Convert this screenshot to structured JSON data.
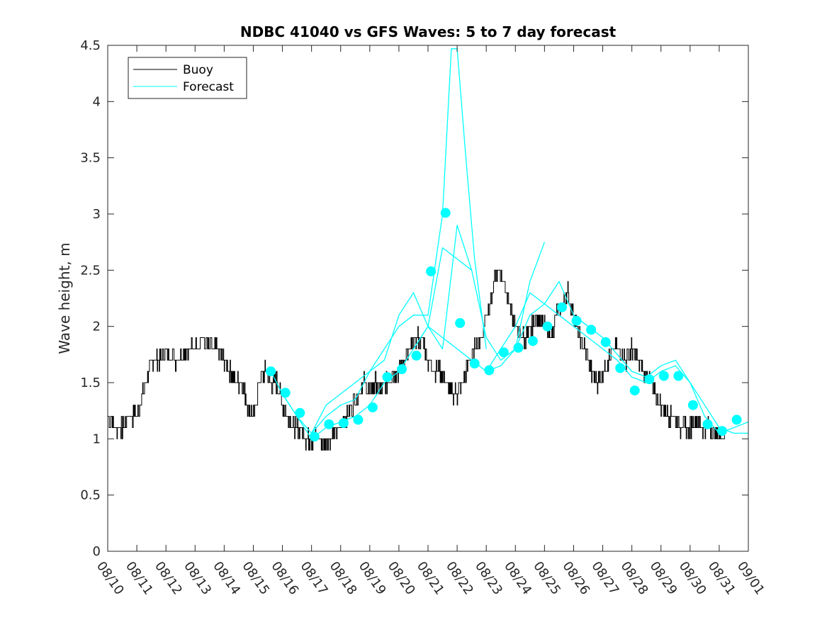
{
  "chart_data": {
    "type": "line",
    "title": "NDBC 41040 vs GFS Waves: 5 to 7 day forecast",
    "xlabel": "",
    "ylabel": "Wave height, m",
    "xlim": [
      0,
      22
    ],
    "ylim": [
      0,
      4.5
    ],
    "x_tick_labels": [
      "08/10",
      "08/11",
      "08/12",
      "08/13",
      "08/14",
      "08/15",
      "08/16",
      "08/17",
      "08/18",
      "08/19",
      "08/20",
      "08/21",
      "08/22",
      "08/23",
      "08/24",
      "08/25",
      "08/26",
      "08/27",
      "08/28",
      "08/29",
      "08/30",
      "08/31",
      "09/01"
    ],
    "y_ticks": [
      "0",
      "0.5",
      "1",
      "1.5",
      "2",
      "2.5",
      "3",
      "3.5",
      "4",
      "4.5"
    ],
    "grid": false,
    "legend_position": "top-left",
    "series": [
      {
        "name": "Buoy",
        "color": "#000000",
        "x": [
          0,
          0.3,
          0.5,
          0.7,
          1.0,
          1.2,
          1.4,
          1.6,
          1.8,
          2.0,
          2.3,
          2.6,
          2.9,
          3.2,
          3.5,
          3.8,
          4.0,
          4.2,
          4.4,
          4.6,
          4.8,
          5.0,
          5.2,
          5.4,
          5.6,
          5.8,
          6.0,
          6.2,
          6.4,
          6.6,
          6.8,
          7.0,
          7.2,
          7.4,
          7.6,
          7.8,
          8.0,
          8.2,
          8.4,
          8.6,
          8.8,
          9.0,
          9.2,
          9.4,
          9.6,
          9.8,
          10.0,
          10.2,
          10.4,
          10.6,
          10.8,
          11.0,
          11.2,
          11.4,
          11.6,
          11.8,
          12.0,
          12.2,
          12.4,
          12.6,
          12.8,
          13.0,
          13.2,
          13.4,
          13.6,
          13.8,
          14.0,
          14.2,
          14.4,
          14.6,
          14.8,
          15.0,
          15.2,
          15.4,
          15.6,
          15.8,
          16.0,
          16.2,
          16.4,
          16.6,
          16.8,
          17.0,
          17.2,
          17.4,
          17.6,
          17.8,
          18.0,
          18.2,
          18.4,
          18.6,
          18.8,
          19.0,
          19.2,
          19.4,
          19.6,
          19.8,
          20.0,
          20.2,
          20.4,
          20.6,
          20.8,
          21.0,
          21.2
        ],
        "values": [
          1.2,
          1.1,
          1.1,
          1.2,
          1.2,
          1.4,
          1.6,
          1.7,
          1.7,
          1.8,
          1.7,
          1.8,
          1.8,
          1.9,
          1.8,
          1.8,
          1.7,
          1.6,
          1.5,
          1.5,
          1.3,
          1.2,
          1.5,
          1.6,
          1.5,
          1.5,
          1.3,
          1.2,
          1.1,
          1.1,
          1.0,
          1.0,
          1.0,
          0.95,
          1.0,
          1.05,
          1.1,
          1.2,
          1.3,
          1.4,
          1.5,
          1.4,
          1.5,
          1.4,
          1.5,
          1.6,
          1.6,
          1.7,
          1.8,
          1.9,
          1.9,
          1.7,
          1.6,
          1.6,
          1.5,
          1.4,
          1.4,
          1.5,
          1.7,
          1.8,
          1.9,
          2.1,
          2.3,
          2.5,
          2.4,
          2.2,
          2.0,
          1.9,
          1.9,
          2.0,
          2.1,
          2.0,
          1.9,
          2.1,
          2.2,
          2.3,
          2.1,
          1.9,
          1.8,
          1.6,
          1.5,
          1.6,
          1.7,
          1.8,
          1.8,
          1.7,
          1.8,
          1.7,
          1.6,
          1.5,
          1.4,
          1.3,
          1.2,
          1.2,
          1.1,
          1.1,
          1.1,
          1.2,
          1.1,
          1.1,
          1.05,
          1.05,
          1.0
        ]
      },
      {
        "name": "Forecast",
        "color": "#00ffff",
        "runs": [
          {
            "x": [
              5.6,
              6.0,
              6.5,
              7.0,
              7.5,
              8.0,
              8.5,
              9.0,
              9.5,
              10.0,
              10.5,
              11.0,
              11.5,
              12.0,
              12.5
            ],
            "values": [
              1.6,
              1.4,
              1.2,
              1.0,
              1.1,
              1.15,
              1.2,
              1.3,
              1.5,
              1.6,
              1.8,
              2.0,
              2.7,
              2.6,
              2.5
            ]
          },
          {
            "x": [
              6.0,
              6.5,
              7.0,
              7.5,
              8.0,
              8.5,
              9.0,
              9.5,
              10.0,
              10.5,
              11.0,
              11.5,
              11.8,
              12.0,
              12.3,
              12.6,
              13.0
            ],
            "values": [
              1.4,
              1.2,
              1.05,
              1.2,
              1.3,
              1.35,
              1.6,
              1.8,
              2.0,
              2.1,
              2.1,
              3.0,
              4.47,
              4.47,
              3.5,
              2.6,
              1.8
            ]
          },
          {
            "x": [
              7.0,
              7.5,
              8.0,
              8.5,
              9.0,
              9.5,
              10.0,
              10.5,
              11.0,
              11.5,
              12.0,
              12.5,
              13.0,
              13.5,
              14.0,
              14.5,
              15.0
            ],
            "values": [
              1.05,
              1.3,
              1.4,
              1.5,
              1.6,
              1.7,
              2.1,
              2.3,
              2.0,
              1.8,
              2.9,
              2.5,
              1.9,
              1.7,
              1.8,
              2.4,
              2.75
            ]
          },
          {
            "x": [
              10.5,
              11.0,
              11.5,
              12.0,
              12.5,
              13.0,
              13.5,
              14.0,
              14.5,
              15.0,
              15.5,
              16.0,
              16.5,
              17.0,
              17.5,
              18.0,
              18.5,
              19.0,
              19.5,
              20.0,
              20.5,
              21.0,
              21.5,
              22.0
            ],
            "values": [
              1.8,
              2.0,
              1.9,
              1.8,
              1.7,
              1.6,
              1.65,
              1.8,
              2.1,
              2.2,
              2.1,
              2.0,
              1.9,
              1.8,
              1.7,
              1.55,
              1.5,
              1.6,
              1.65,
              1.5,
              1.3,
              1.1,
              1.05,
              1.05
            ]
          },
          {
            "x": [
              13.0,
              13.5,
              14.0,
              14.5,
              15.0,
              15.5,
              16.0,
              16.5,
              17.0,
              17.5,
              18.0,
              18.5,
              19.0,
              19.5,
              20.0,
              20.5,
              21.0,
              21.5,
              22.0
            ],
            "values": [
              1.6,
              1.8,
              2.0,
              2.3,
              2.2,
              2.4,
              2.1,
              2.0,
              1.9,
              1.75,
              1.6,
              1.55,
              1.65,
              1.7,
              1.5,
              1.2,
              1.05,
              1.1,
              1.15
            ]
          }
        ],
        "marker_x": [
          5.6,
          6.1,
          6.6,
          7.1,
          7.6,
          8.1,
          8.6,
          9.1,
          9.6,
          10.1,
          10.6,
          11.1,
          11.6,
          12.1,
          12.6,
          13.1,
          13.6,
          14.1,
          14.6,
          15.1,
          15.6,
          16.1,
          16.6,
          17.1,
          17.6,
          18.1,
          18.6,
          19.1,
          19.6,
          20.1,
          20.6,
          21.1,
          21.6
        ],
        "marker_values": [
          1.6,
          1.41,
          1.23,
          1.02,
          1.13,
          1.14,
          1.17,
          1.28,
          1.55,
          1.62,
          1.74,
          2.49,
          3.01,
          2.03,
          1.67,
          1.61,
          1.77,
          1.81,
          1.87,
          2.0,
          2.17,
          2.05,
          1.97,
          1.86,
          1.63,
          1.43,
          1.53,
          1.56,
          1.56,
          1.3,
          1.13,
          1.07,
          1.17
        ]
      }
    ]
  }
}
